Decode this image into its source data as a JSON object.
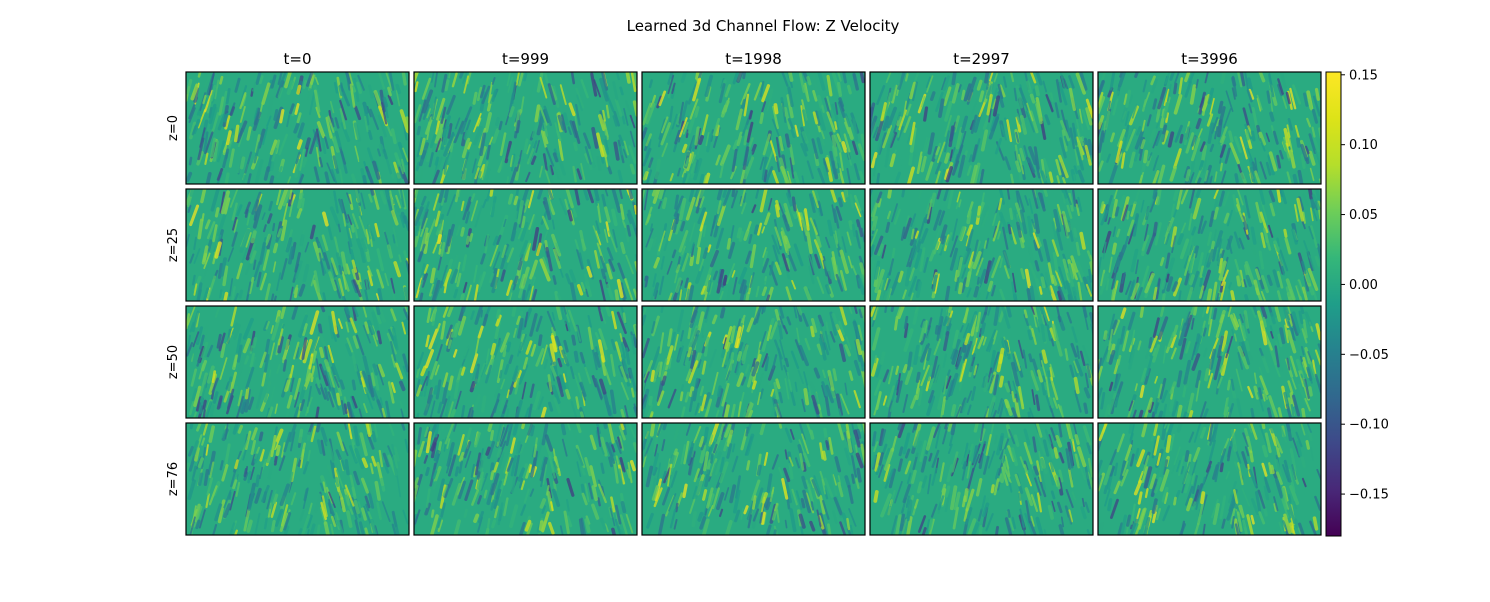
{
  "chart_data": {
    "type": "heatmap",
    "title": "Learned 3d Channel Flow: Z Velocity",
    "columns": [
      "t=0",
      "t=999",
      "t=1998",
      "t=2997",
      "t=3996"
    ],
    "rows": [
      "z=0",
      "z=25",
      "z=50",
      "z=76"
    ],
    "colorbar": {
      "colormap": "viridis",
      "range": [
        -0.18,
        0.152
      ],
      "ticks": [
        0.15,
        0.1,
        0.05,
        0.0,
        -0.05,
        -0.1,
        -0.15
      ],
      "tick_labels": [
        "0.15",
        "0.10",
        "0.05",
        "0.00",
        "−0.05",
        "−0.10",
        "−0.15"
      ]
    },
    "field_note": "Each panel shows a 2D turbulent velocity field with diagonal streaks forming a chevron pattern; values mostly near 0.00 with sparse peaks around ±0.15."
  },
  "colors": {
    "panel_base": "#21918c",
    "frame": "#000000"
  }
}
